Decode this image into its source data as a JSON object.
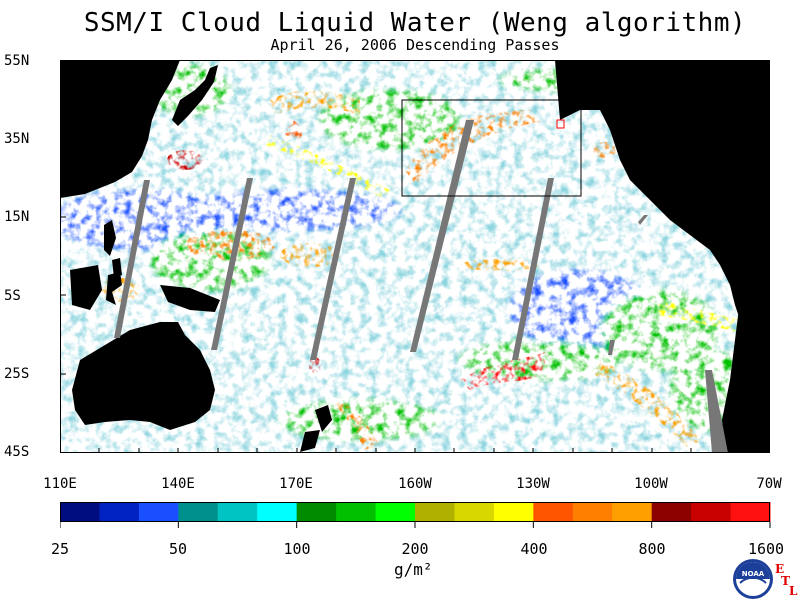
{
  "title": "SSM/I Cloud Liquid Water (Weng algorithm)",
  "subtitle": "April 26, 2006  Descending Passes",
  "lat_labels": [
    "55N",
    "35N",
    "15N",
    "5S",
    "25S",
    "45S"
  ],
  "lon_labels": [
    "110E",
    "140E",
    "170E",
    "160W",
    "130W",
    "100W",
    "70W"
  ],
  "colorbar": {
    "ticks": [
      "25",
      "50",
      "100",
      "200",
      "400",
      "800",
      "1600"
    ],
    "colors": [
      "#000d80",
      "#0022c0",
      "#1a4fff",
      "#00908c",
      "#00c4c4",
      "#00ffff",
      "#008c00",
      "#00c000",
      "#00ff00",
      "#b0b000",
      "#d8d800",
      "#ffff00",
      "#ff5500",
      "#ff7f00",
      "#ffa000",
      "#8c0000",
      "#c80000",
      "#ff1010"
    ],
    "units": "g/m²"
  },
  "logo": {
    "text": "NOAA",
    "tag_letters": [
      "E",
      "T",
      "L"
    ]
  }
}
